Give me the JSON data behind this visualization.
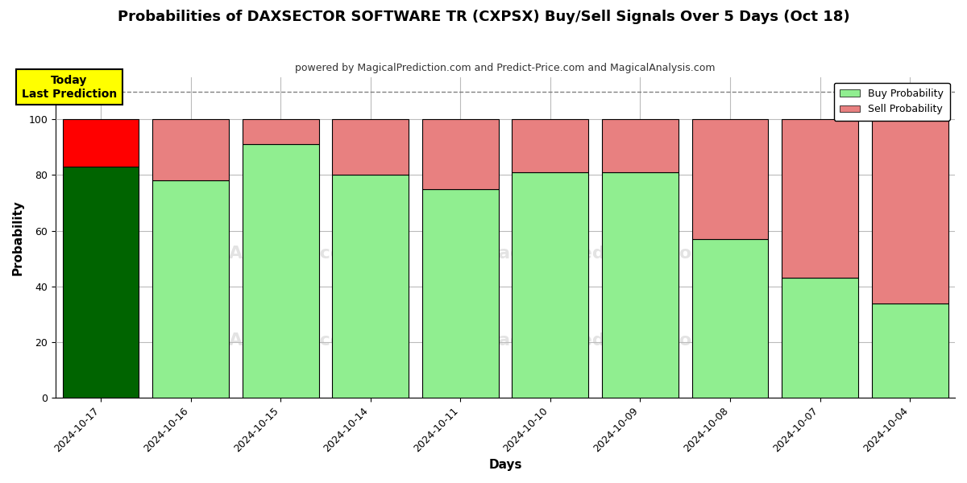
{
  "title": "Probabilities of DAXSECTOR SOFTWARE TR (CXPSX) Buy/Sell Signals Over 5 Days (Oct 18)",
  "subtitle": "powered by MagicalPrediction.com and Predict-Price.com and MagicalAnalysis.com",
  "xlabel": "Days",
  "ylabel": "Probability",
  "dates": [
    "2024-10-17",
    "2024-10-16",
    "2024-10-15",
    "2024-10-14",
    "2024-10-11",
    "2024-10-10",
    "2024-10-09",
    "2024-10-08",
    "2024-10-07",
    "2024-10-04"
  ],
  "buy_values": [
    83,
    78,
    91,
    80,
    75,
    81,
    81,
    57,
    43,
    34
  ],
  "sell_values": [
    17,
    22,
    9,
    20,
    25,
    19,
    19,
    43,
    57,
    66
  ],
  "buy_colors": [
    "#006400",
    "#90EE90",
    "#90EE90",
    "#90EE90",
    "#90EE90",
    "#90EE90",
    "#90EE90",
    "#90EE90",
    "#90EE90",
    "#90EE90"
  ],
  "sell_colors": [
    "#FF0000",
    "#E88080",
    "#E88080",
    "#E88080",
    "#E88080",
    "#E88080",
    "#E88080",
    "#E88080",
    "#E88080",
    "#E88080"
  ],
  "today_label_text": "Today\nLast Prediction",
  "today_label_bg": "#FFFF00",
  "legend_buy_color": "#90EE90",
  "legend_sell_color": "#E88080",
  "dashed_line_y": 110,
  "ylim": [
    0,
    115
  ],
  "yticks": [
    0,
    20,
    40,
    60,
    80,
    100
  ],
  "background_color": "#ffffff",
  "grid_color": "#bbbbbb",
  "bar_edge_color": "#000000",
  "bar_linewidth": 0.8,
  "bar_width": 0.85
}
